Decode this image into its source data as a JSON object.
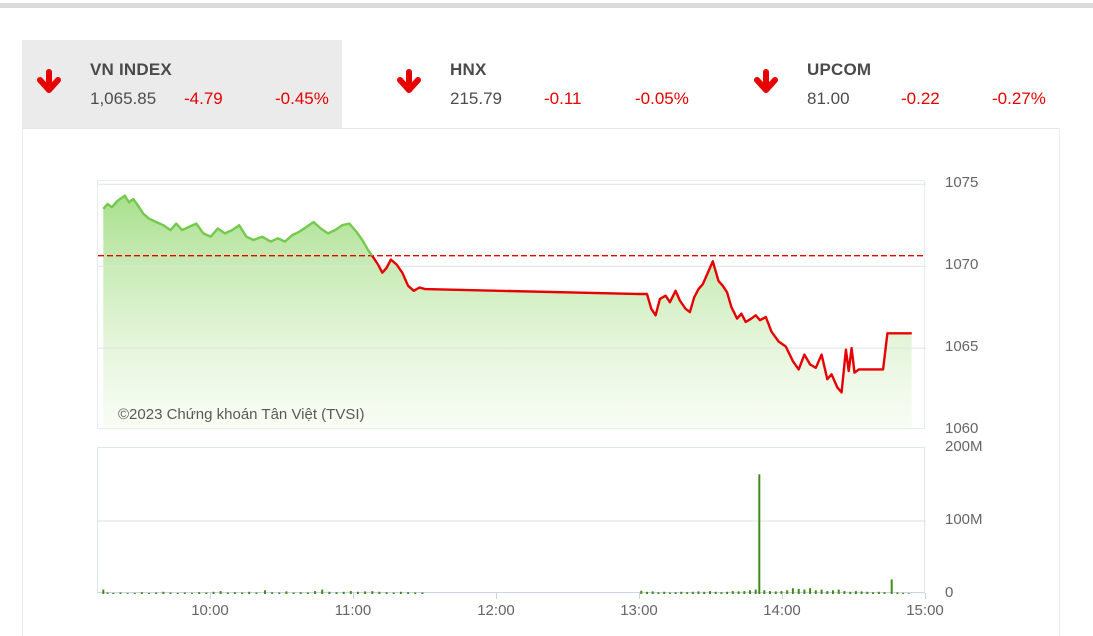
{
  "header": {
    "tabs": [
      {
        "name": "VN INDEX",
        "value": "1,065.85",
        "change": "-4.79",
        "change_pct": "-0.45%",
        "direction": "down",
        "selected": true
      },
      {
        "name": "HNX",
        "value": "215.79",
        "change": "-0.11",
        "change_pct": "-0.05%",
        "direction": "down",
        "selected": false
      },
      {
        "name": "UPCOM",
        "value": "81.00",
        "change": "-0.22",
        "change_pct": "-0.27%",
        "direction": "down",
        "selected": false
      }
    ]
  },
  "watermark": "©2023 Chứng khoán Tân Việt (TVSI)",
  "colors": {
    "down_red": "#e60000",
    "line_green": "#74c94e",
    "area_top": "#a3de85",
    "area_bottom": "#eef8e5",
    "volume_bar": "#3f8c1c",
    "grid": "#e2e2e2",
    "axis": "#c9d6e2",
    "tab_selected_bg": "#ebebeb",
    "label_gray": "#666666",
    "title_gray": "#4a4a4a"
  },
  "chart_data": [
    {
      "type": "area",
      "name": "vn-index-intraday",
      "x_unit": "hour_of_day",
      "xlim": [
        9.213,
        15.0
      ],
      "ylim": [
        1060,
        1075.2
      ],
      "grid": true,
      "legend": "none",
      "y_ticks": [
        {
          "label": "1075",
          "value": 1075
        },
        {
          "label": "1070",
          "value": 1070
        },
        {
          "label": "1065",
          "value": 1065
        },
        {
          "label": "1060",
          "value": 1060
        }
      ],
      "x_ticks": [
        {
          "label": "10:00",
          "value": 10
        },
        {
          "label": "11:00",
          "value": 11
        },
        {
          "label": "12:00",
          "value": 12
        },
        {
          "label": "13:00",
          "value": 13
        },
        {
          "label": "14:00",
          "value": 14
        },
        {
          "label": "15:00",
          "value": 15
        }
      ],
      "reference_line": {
        "value": 1070.64,
        "style": "dashed",
        "color": "#e60000",
        "meaning": "previous-close"
      },
      "points": [
        [
          9.25,
          1073.5
        ],
        [
          9.28,
          1073.8
        ],
        [
          9.31,
          1073.6
        ],
        [
          9.35,
          1074.0
        ],
        [
          9.4,
          1074.3
        ],
        [
          9.43,
          1073.9
        ],
        [
          9.46,
          1074.1
        ],
        [
          9.5,
          1073.6
        ],
        [
          9.53,
          1073.2
        ],
        [
          9.57,
          1072.9
        ],
        [
          9.62,
          1072.7
        ],
        [
          9.67,
          1072.5
        ],
        [
          9.72,
          1072.2
        ],
        [
          9.76,
          1072.6
        ],
        [
          9.8,
          1072.2
        ],
        [
          9.85,
          1072.4
        ],
        [
          9.9,
          1072.6
        ],
        [
          9.95,
          1072.0
        ],
        [
          10.0,
          1071.8
        ],
        [
          10.05,
          1072.3
        ],
        [
          10.1,
          1072.0
        ],
        [
          10.15,
          1072.2
        ],
        [
          10.2,
          1072.5
        ],
        [
          10.25,
          1071.8
        ],
        [
          10.3,
          1071.6
        ],
        [
          10.36,
          1071.8
        ],
        [
          10.42,
          1071.5
        ],
        [
          10.47,
          1071.7
        ],
        [
          10.52,
          1071.5
        ],
        [
          10.57,
          1071.9
        ],
        [
          10.62,
          1072.1
        ],
        [
          10.67,
          1072.4
        ],
        [
          10.72,
          1072.7
        ],
        [
          10.77,
          1072.3
        ],
        [
          10.82,
          1072.0
        ],
        [
          10.87,
          1072.2
        ],
        [
          10.92,
          1072.5
        ],
        [
          10.97,
          1072.6
        ],
        [
          11.02,
          1072.1
        ],
        [
          11.06,
          1071.6
        ],
        [
          11.1,
          1071.0
        ],
        [
          11.14,
          1070.5
        ],
        [
          11.17,
          1070.1
        ],
        [
          11.2,
          1069.6
        ],
        [
          11.23,
          1069.9
        ],
        [
          11.26,
          1070.4
        ],
        [
          11.3,
          1070.1
        ],
        [
          11.34,
          1069.6
        ],
        [
          11.38,
          1068.8
        ],
        [
          11.42,
          1068.5
        ],
        [
          11.46,
          1068.7
        ],
        [
          11.5,
          1068.6
        ],
        [
          13.0,
          1068.3
        ],
        [
          13.05,
          1068.3
        ],
        [
          13.08,
          1067.4
        ],
        [
          13.11,
          1067.0
        ],
        [
          13.14,
          1068.0
        ],
        [
          13.18,
          1068.2
        ],
        [
          13.21,
          1067.8
        ],
        [
          13.25,
          1068.5
        ],
        [
          13.28,
          1067.9
        ],
        [
          13.32,
          1067.4
        ],
        [
          13.35,
          1067.2
        ],
        [
          13.38,
          1068.1
        ],
        [
          13.41,
          1068.6
        ],
        [
          13.44,
          1068.9
        ],
        [
          13.47,
          1069.5
        ],
        [
          13.51,
          1070.3
        ],
        [
          13.55,
          1069.1
        ],
        [
          13.58,
          1068.8
        ],
        [
          13.61,
          1068.4
        ],
        [
          13.64,
          1067.5
        ],
        [
          13.68,
          1066.8
        ],
        [
          13.71,
          1067.1
        ],
        [
          13.74,
          1066.6
        ],
        [
          13.78,
          1066.8
        ],
        [
          13.81,
          1067.0
        ],
        [
          13.84,
          1066.7
        ],
        [
          13.88,
          1066.9
        ],
        [
          13.92,
          1066.0
        ],
        [
          13.97,
          1065.4
        ],
        [
          14.02,
          1065.1
        ],
        [
          14.07,
          1064.2
        ],
        [
          14.11,
          1063.7
        ],
        [
          14.15,
          1064.6
        ],
        [
          14.19,
          1064.0
        ],
        [
          14.23,
          1063.8
        ],
        [
          14.27,
          1064.6
        ],
        [
          14.31,
          1063.1
        ],
        [
          14.34,
          1063.4
        ],
        [
          14.38,
          1062.6
        ],
        [
          14.41,
          1062.3
        ],
        [
          14.44,
          1064.9
        ],
        [
          14.46,
          1063.6
        ],
        [
          14.48,
          1065.0
        ],
        [
          14.5,
          1063.5
        ],
        [
          14.53,
          1063.7
        ],
        [
          14.7,
          1063.7
        ],
        [
          14.73,
          1065.9
        ],
        [
          14.9,
          1065.9
        ]
      ]
    },
    {
      "type": "bar",
      "name": "vn-index-volume",
      "x_unit": "hour_of_day",
      "y_unit": "million_shares",
      "xlim": [
        9.213,
        15.0
      ],
      "ylim": [
        0,
        200
      ],
      "grid": true,
      "legend": "none",
      "y_ticks": [
        {
          "label": "200M",
          "value": 200
        },
        {
          "label": "100M",
          "value": 100
        },
        {
          "label": "0",
          "value": 0
        }
      ],
      "bars": [
        [
          9.25,
          6
        ],
        [
          9.28,
          2
        ],
        [
          9.32,
          1.5
        ],
        [
          9.37,
          2
        ],
        [
          9.42,
          1.2
        ],
        [
          9.47,
          1.5
        ],
        [
          9.52,
          2.5
        ],
        [
          9.57,
          1.5
        ],
        [
          9.62,
          2
        ],
        [
          9.67,
          3
        ],
        [
          9.72,
          2
        ],
        [
          9.77,
          1.5
        ],
        [
          9.82,
          2
        ],
        [
          9.87,
          1.6
        ],
        [
          9.92,
          2.5
        ],
        [
          9.97,
          2
        ],
        [
          10.02,
          3
        ],
        [
          10.07,
          4
        ],
        [
          10.12,
          2
        ],
        [
          10.17,
          2.5
        ],
        [
          10.22,
          2
        ],
        [
          10.27,
          3
        ],
        [
          10.32,
          2
        ],
        [
          10.38,
          5
        ],
        [
          10.43,
          2.5
        ],
        [
          10.48,
          2
        ],
        [
          10.53,
          3.5
        ],
        [
          10.58,
          2
        ],
        [
          10.63,
          2.5
        ],
        [
          10.68,
          2
        ],
        [
          10.73,
          4
        ],
        [
          10.78,
          6
        ],
        [
          10.83,
          3
        ],
        [
          10.88,
          2.5
        ],
        [
          10.93,
          3
        ],
        [
          10.98,
          4
        ],
        [
          11.03,
          3
        ],
        [
          11.08,
          3.5
        ],
        [
          11.13,
          4
        ],
        [
          11.18,
          3
        ],
        [
          11.23,
          2.5
        ],
        [
          11.28,
          2
        ],
        [
          11.33,
          3
        ],
        [
          11.38,
          2.5
        ],
        [
          11.43,
          2
        ],
        [
          11.48,
          2.2
        ],
        [
          13.01,
          4.5
        ],
        [
          13.05,
          3
        ],
        [
          13.09,
          3.5
        ],
        [
          13.13,
          2.5
        ],
        [
          13.17,
          3
        ],
        [
          13.21,
          2
        ],
        [
          13.25,
          2.5
        ],
        [
          13.29,
          3
        ],
        [
          13.33,
          2.5
        ],
        [
          13.37,
          3
        ],
        [
          13.41,
          3.5
        ],
        [
          13.45,
          3
        ],
        [
          13.49,
          4
        ],
        [
          13.53,
          3
        ],
        [
          13.57,
          2.5
        ],
        [
          13.61,
          3
        ],
        [
          13.65,
          4
        ],
        [
          13.69,
          3.5
        ],
        [
          13.73,
          4
        ],
        [
          13.77,
          5
        ],
        [
          13.81,
          6
        ],
        [
          13.835,
          164
        ],
        [
          13.87,
          5
        ],
        [
          13.91,
          4
        ],
        [
          13.95,
          3.5
        ],
        [
          13.99,
          4
        ],
        [
          14.03,
          5
        ],
        [
          14.07,
          8
        ],
        [
          14.11,
          7
        ],
        [
          14.15,
          6
        ],
        [
          14.19,
          8
        ],
        [
          14.23,
          5
        ],
        [
          14.27,
          6
        ],
        [
          14.31,
          4
        ],
        [
          14.35,
          5
        ],
        [
          14.39,
          6
        ],
        [
          14.43,
          4
        ],
        [
          14.47,
          3
        ],
        [
          14.51,
          4
        ],
        [
          14.55,
          3.5
        ],
        [
          14.59,
          3
        ],
        [
          14.63,
          2.5
        ],
        [
          14.67,
          3
        ],
        [
          14.71,
          2.5
        ],
        [
          14.76,
          20
        ],
        [
          14.8,
          2
        ],
        [
          14.84,
          1.5
        ],
        [
          14.88,
          1
        ]
      ]
    }
  ]
}
